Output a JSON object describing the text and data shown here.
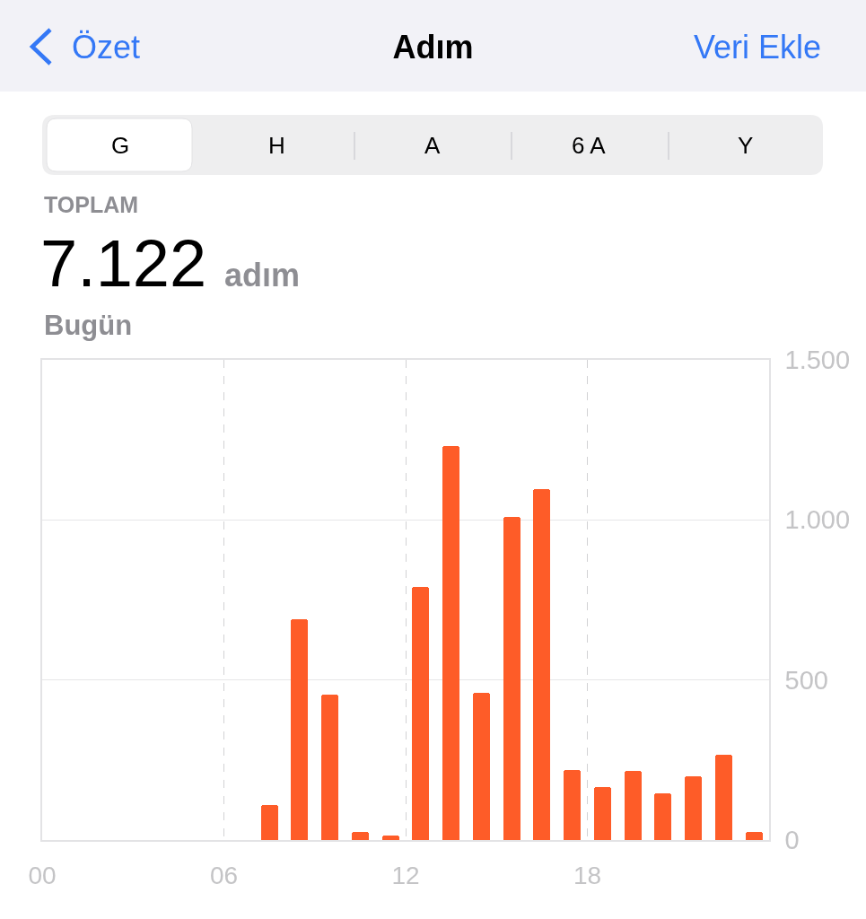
{
  "chart_data": {
    "type": "bar",
    "title": "Adım",
    "annotations": [
      "Özet",
      "Veri Ekle",
      "G",
      "H",
      "A",
      "6 A",
      "Y",
      "TOPLAM",
      "7.122",
      "adım",
      "Bugün"
    ],
    "x": [
      7.5,
      8.5,
      9.5,
      10.5,
      11.5,
      12.5,
      13.5,
      14.5,
      15.5,
      16.5,
      17.5,
      18.5,
      19.5,
      20.5,
      21.5,
      22.5,
      23.5
    ],
    "values": [
      110,
      690,
      455,
      25,
      15,
      790,
      1230,
      460,
      1010,
      1095,
      220,
      165,
      215,
      145,
      200,
      265,
      25
    ],
    "color": "#fe5c28",
    "xlim": [
      0,
      24
    ],
    "xticks": [
      {
        "value": 0,
        "label": "00"
      },
      {
        "value": 6,
        "label": "06"
      },
      {
        "value": 12,
        "label": "12"
      },
      {
        "value": 18,
        "label": "18"
      }
    ],
    "ylim": [
      0,
      1500
    ],
    "yticks": [
      0,
      500,
      {
        "value": 1000,
        "label": "1.000"
      },
      {
        "value": 1500,
        "label": "1.500"
      }
    ],
    "grid": true
  }
}
